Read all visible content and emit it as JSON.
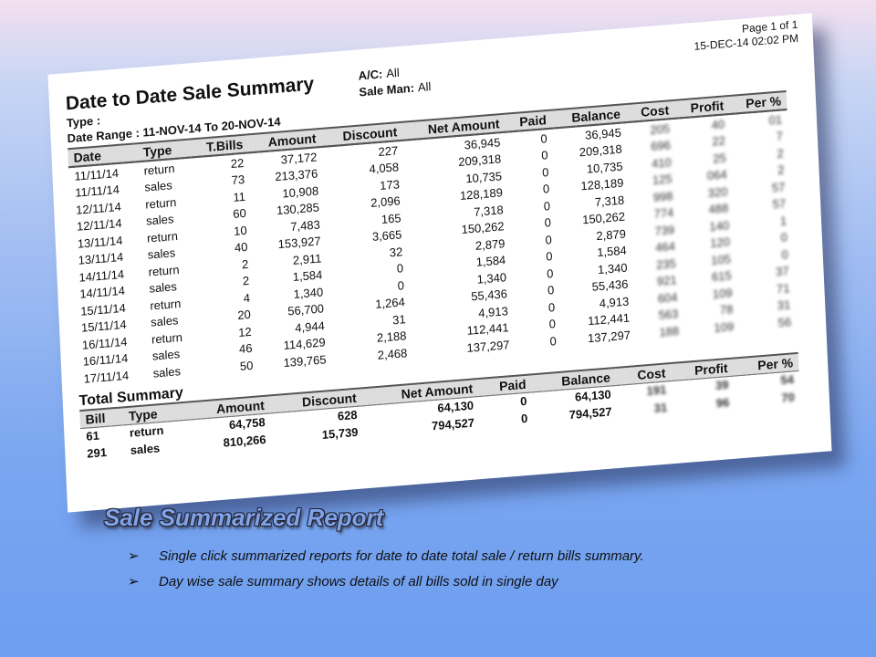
{
  "report": {
    "page": "Page 1 of 1",
    "printed": "15-DEC-14 02:02 PM",
    "title": "Date to Date Sale Summary",
    "type_label": "Type :",
    "date_range": "Date Range : 11-NOV-14 To 20-NOV-14",
    "ac_label": "A/C:",
    "ac_value": "All",
    "saleman_label": "Sale Man:",
    "saleman_value": "All",
    "columns": [
      "Date",
      "Type",
      "T.Bills",
      "Amount",
      "Discount",
      "Net Amount",
      "Paid",
      "Balance",
      "Cost",
      "Profit",
      "Per %"
    ],
    "rows": [
      [
        "11/11/14",
        "return",
        "22",
        "37,172",
        "227",
        "36,945",
        "0",
        "36,945",
        "205",
        "40",
        "01"
      ],
      [
        "11/11/14",
        "sales",
        "73",
        "213,376",
        "4,058",
        "209,318",
        "0",
        "209,318",
        "696",
        "22",
        "7"
      ],
      [
        "12/11/14",
        "return",
        "11",
        "10,908",
        "173",
        "10,735",
        "0",
        "10,735",
        "410",
        "25",
        "2"
      ],
      [
        "12/11/14",
        "sales",
        "60",
        "130,285",
        "2,096",
        "128,189",
        "0",
        "128,189",
        "125",
        "064",
        "2"
      ],
      [
        "13/11/14",
        "return",
        "10",
        "7,483",
        "165",
        "7,318",
        "0",
        "7,318",
        "998",
        "320",
        "57"
      ],
      [
        "13/11/14",
        "sales",
        "40",
        "153,927",
        "3,665",
        "150,262",
        "0",
        "150,262",
        "774",
        "488",
        "57"
      ],
      [
        "14/11/14",
        "return",
        "2",
        "2,911",
        "32",
        "2,879",
        "0",
        "2,879",
        "739",
        "140",
        "1"
      ],
      [
        "14/11/14",
        "sales",
        "2",
        "1,584",
        "0",
        "1,584",
        "0",
        "1,584",
        "464",
        "120",
        "0"
      ],
      [
        "15/11/14",
        "return",
        "4",
        "1,340",
        "0",
        "1,340",
        "0",
        "1,340",
        "235",
        "105",
        "0"
      ],
      [
        "15/11/14",
        "sales",
        "20",
        "56,700",
        "1,264",
        "55,436",
        "0",
        "55,436",
        "921",
        "615",
        "37"
      ],
      [
        "16/11/14",
        "return",
        "12",
        "4,944",
        "31",
        "4,913",
        "0",
        "4,913",
        "604",
        "109",
        "71"
      ],
      [
        "16/11/14",
        "sales",
        "46",
        "114,629",
        "2,188",
        "112,441",
        "0",
        "112,441",
        "563",
        "78",
        "31"
      ],
      [
        "17/11/14",
        "sales",
        "50",
        "139,765",
        "2,468",
        "137,297",
        "0",
        "137,297",
        "188",
        "109",
        "56"
      ]
    ],
    "total_title": "Total Summary",
    "total_columns": [
      "Bill",
      "Type",
      "Amount",
      "Discount",
      "Net Amount",
      "Paid",
      "Balance",
      "Cost",
      "Profit",
      "Per %"
    ],
    "total_rows": [
      [
        "61",
        "return",
        "64,758",
        "628",
        "64,130",
        "0",
        "64,130",
        "191",
        "39",
        "54"
      ],
      [
        "291",
        "sales",
        "810,266",
        "15,739",
        "794,527",
        "0",
        "794,527",
        "31",
        "96",
        "70"
      ]
    ]
  },
  "caption": "Sale Summarized Report",
  "bullets": [
    "Single click summarized reports for date to date total sale / return bills summary.",
    "Day wise sale summary shows details of all bills sold in single day"
  ]
}
